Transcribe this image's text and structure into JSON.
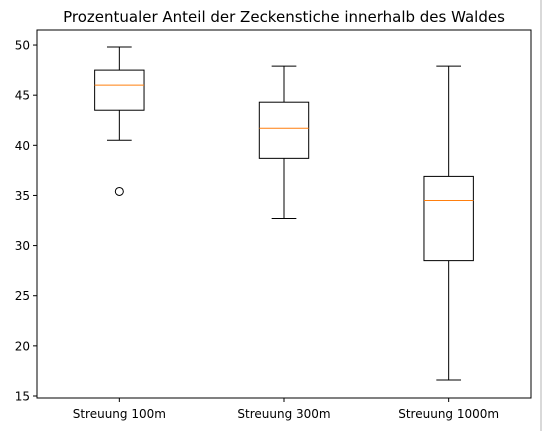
{
  "chart_data": {
    "type": "box",
    "title": "Prozentualer Anteil der Zeckenstiche innerhalb des Waldes",
    "xlabel": "",
    "ylabel": "",
    "ylim": [
      14.8,
      51.5
    ],
    "yticks": [
      15,
      20,
      25,
      30,
      35,
      40,
      45,
      50
    ],
    "categories": [
      "Streuung 100m",
      "Streuung 300m",
      "Streuung 1000m"
    ],
    "boxes": [
      {
        "whisker_low": 40.5,
        "q1": 43.5,
        "median": 46.0,
        "q3": 47.5,
        "whisker_high": 49.8,
        "fliers": [
          35.4
        ]
      },
      {
        "whisker_low": 32.7,
        "q1": 38.7,
        "median": 41.7,
        "q3": 44.3,
        "whisker_high": 47.9,
        "fliers": []
      },
      {
        "whisker_low": 16.6,
        "q1": 28.5,
        "median": 34.5,
        "q3": 36.9,
        "whisker_high": 47.9,
        "fliers": []
      }
    ],
    "colors": {
      "box": "#000000",
      "median": "#ff7f0e",
      "frame": "#000000"
    },
    "grid": false
  }
}
